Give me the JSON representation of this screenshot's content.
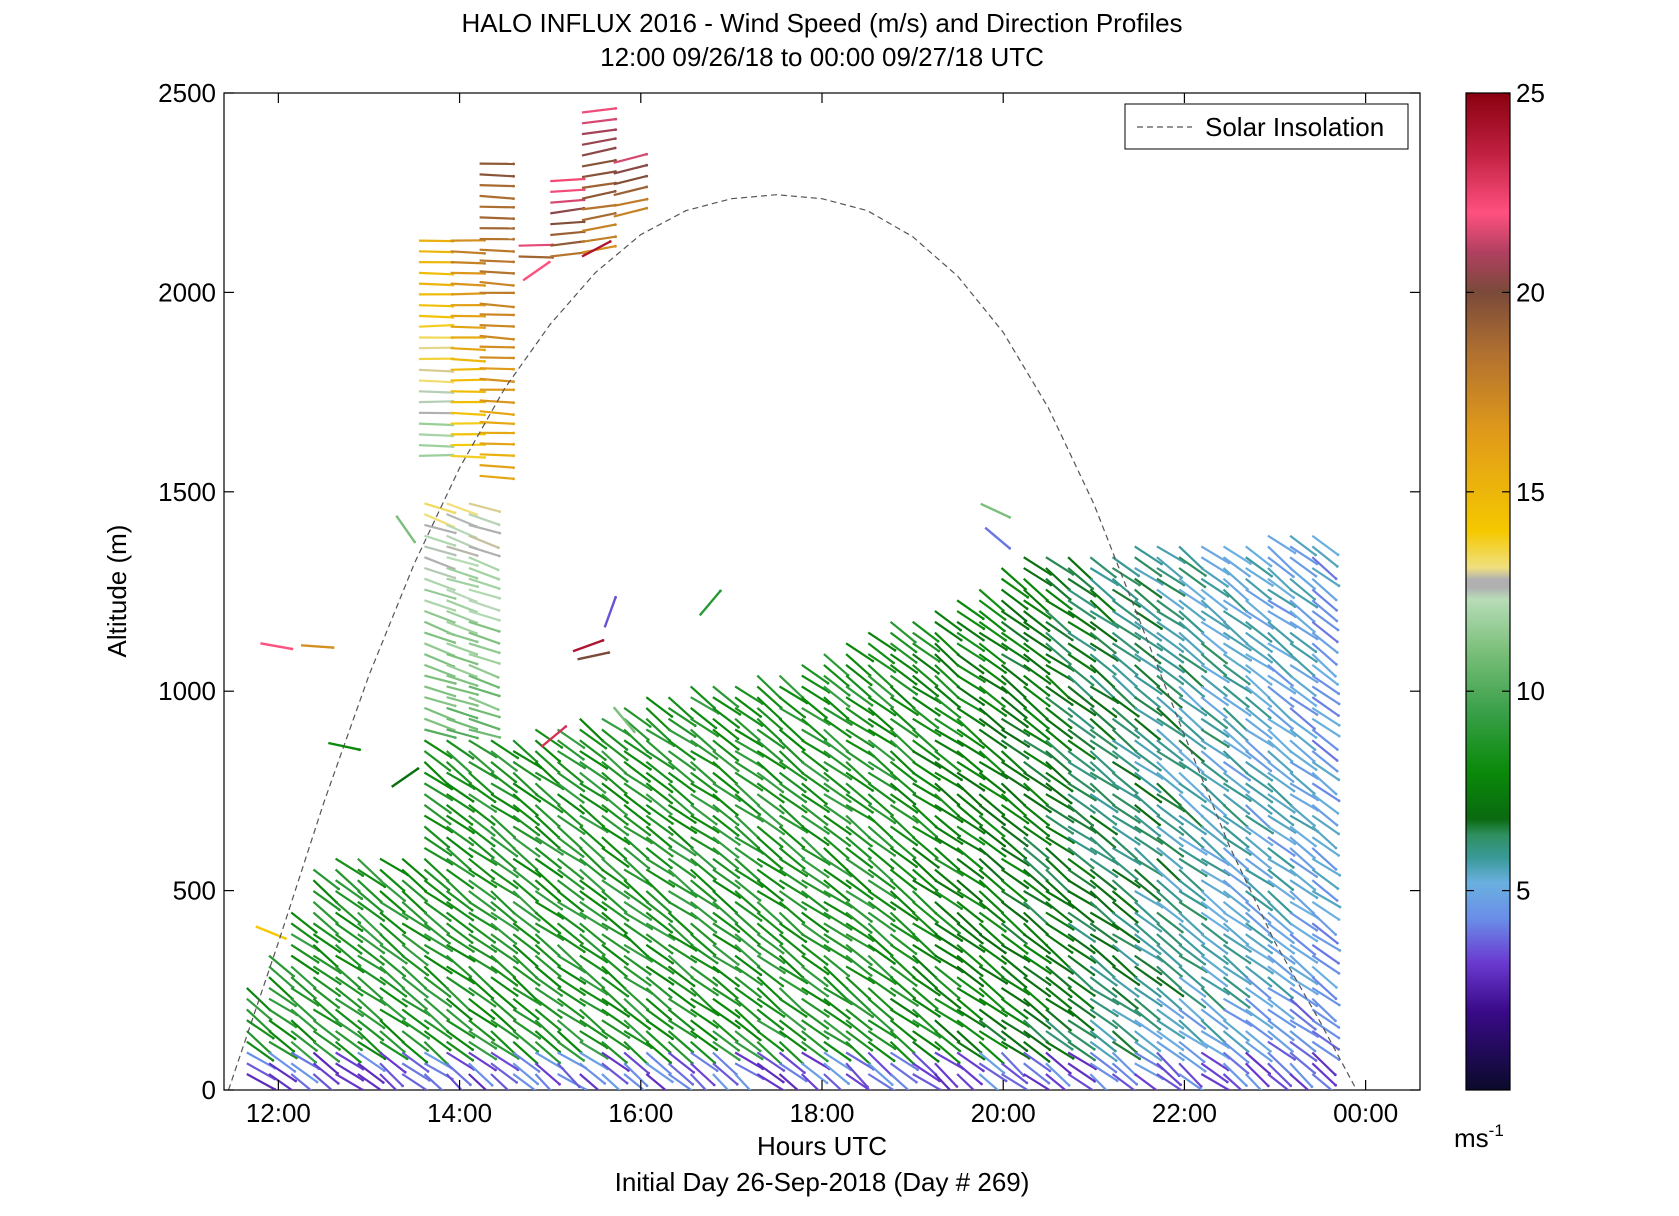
{
  "chart_data": {
    "type": "wind-barb profile (time-height)",
    "title": "HALO INFLUX 2016 - Wind Speed (m/s) and Direction Profiles",
    "subtitle": "12:00 09/26/18 to 00:00 09/27/18  UTC",
    "xlabel": "Hours UTC",
    "xlabel2": "Initial Day 26-Sep-2018 (Day # 269)",
    "ylabel": "Altitude (m)",
    "x_ticks": [
      {
        "hour": 12,
        "label": "12:00"
      },
      {
        "hour": 14,
        "label": "14:00"
      },
      {
        "hour": 16,
        "label": "16:00"
      },
      {
        "hour": 18,
        "label": "18:00"
      },
      {
        "hour": 20,
        "label": "20:00"
      },
      {
        "hour": 22,
        "label": "22:00"
      },
      {
        "hour": 24,
        "label": "00:00"
      }
    ],
    "xlim": [
      11.4,
      24.6
    ],
    "y_ticks": [
      0,
      500,
      1000,
      1500,
      2000,
      2500
    ],
    "ylim": [
      0,
      2500
    ],
    "grid": false,
    "legend": {
      "position": "top-right",
      "entries": [
        "Solar Insolation"
      ]
    },
    "colorbar": {
      "unit_base": "ms",
      "unit_exp": "-1",
      "ticks": [
        5,
        10,
        15,
        20,
        25
      ],
      "range": [
        0,
        25
      ],
      "colors": [
        {
          "v": 0,
          "c": "#0a0a2a"
        },
        {
          "v": 2,
          "c": "#3a0a8a"
        },
        {
          "v": 3.2,
          "c": "#6a3ad0"
        },
        {
          "v": 4.3,
          "c": "#6a8ee8"
        },
        {
          "v": 5.2,
          "c": "#6ab0e0"
        },
        {
          "v": 5.8,
          "c": "#3a9a9a"
        },
        {
          "v": 6.4,
          "c": "#2f8f5f"
        },
        {
          "v": 6.8,
          "c": "#0a6a10"
        },
        {
          "v": 8,
          "c": "#0a8a0a"
        },
        {
          "v": 9.5,
          "c": "#3aa04a"
        },
        {
          "v": 11,
          "c": "#7abf7a"
        },
        {
          "v": 12.3,
          "c": "#b8dcb8"
        },
        {
          "v": 12.6,
          "c": "#b0b0b0"
        },
        {
          "v": 12.8,
          "c": "#b0b0b0"
        },
        {
          "v": 13.1,
          "c": "#f0e080"
        },
        {
          "v": 14,
          "c": "#f5c800"
        },
        {
          "v": 16.5,
          "c": "#e09a1a"
        },
        {
          "v": 18.5,
          "c": "#b07030"
        },
        {
          "v": 20,
          "c": "#7a4a3a"
        },
        {
          "v": 21,
          "c": "#b04060"
        },
        {
          "v": 22,
          "c": "#ff5080"
        },
        {
          "v": 23.5,
          "c": "#c02040"
        },
        {
          "v": 25,
          "c": "#8a0010"
        }
      ]
    },
    "solar_insolation": {
      "style": "dashed",
      "color": "#555555",
      "points": [
        [
          11.45,
          0
        ],
        [
          12.0,
          370
        ],
        [
          12.5,
          720
        ],
        [
          13.0,
          1040
        ],
        [
          13.5,
          1320
        ],
        [
          14.0,
          1560
        ],
        [
          14.5,
          1760
        ],
        [
          15.0,
          1920
        ],
        [
          15.5,
          2050
        ],
        [
          16.0,
          2145
        ],
        [
          16.5,
          2205
        ],
        [
          17.0,
          2235
        ],
        [
          17.5,
          2245
        ],
        [
          18.0,
          2235
        ],
        [
          18.5,
          2205
        ],
        [
          19.0,
          2140
        ],
        [
          19.5,
          2040
        ],
        [
          20.0,
          1900
        ],
        [
          20.5,
          1710
        ],
        [
          21.0,
          1470
        ],
        [
          21.5,
          1180
        ],
        [
          22.0,
          890
        ],
        [
          22.5,
          610
        ],
        [
          23.0,
          370
        ],
        [
          23.5,
          170
        ],
        [
          23.9,
          0
        ]
      ]
    }
  }
}
